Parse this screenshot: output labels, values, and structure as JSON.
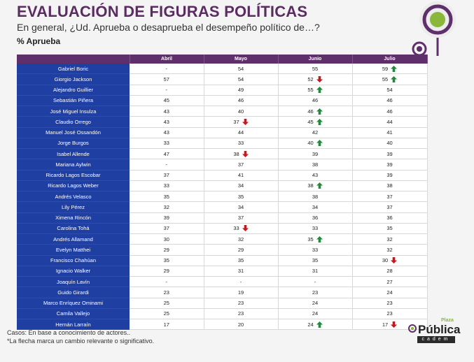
{
  "header": {
    "title": "EVALUACIÓN DE FIGURAS POLÍTICAS",
    "subtitle": "En general, ¿Ud. Aprueba o desaprueba el desempeño político de…?",
    "unit": "% Aprueba"
  },
  "colors": {
    "title": "#5b2c62",
    "header_bg": "#5e2f6a",
    "name_bg": "#1f3fa3",
    "arrow_up": "#1e8a3a",
    "arrow_down": "#c8161d",
    "accent_green": "#8ab73a"
  },
  "footer": {
    "note1": "Casos: En base a conocimiento de actores..",
    "note2": "*La flecha marca un cambio relevante o significativo.",
    "brand_top": "Plaza",
    "brand_main": "Pública",
    "brand_sub": "cadem"
  },
  "chart_data": {
    "type": "table",
    "columns": [
      "Abril",
      "Mayo",
      "Junio",
      "Julio"
    ],
    "rows": [
      {
        "name": "Gabriel Boric",
        "values": [
          "-",
          "54",
          "55",
          "59"
        ],
        "arrows": [
          "",
          "",
          "",
          "up"
        ]
      },
      {
        "name": "Giorgio Jackson",
        "values": [
          "57",
          "54",
          "52",
          "55"
        ],
        "arrows": [
          "",
          "",
          "down",
          "up"
        ]
      },
      {
        "name": "Alejandro Guillier",
        "values": [
          "-",
          "49",
          "55",
          "54"
        ],
        "arrows": [
          "",
          "",
          "up",
          ""
        ]
      },
      {
        "name": "Sebastián Piñera",
        "values": [
          "45",
          "46",
          "46",
          "46"
        ],
        "arrows": [
          "",
          "",
          "",
          ""
        ]
      },
      {
        "name": "José Miguel Insulza",
        "values": [
          "43",
          "40",
          "46",
          "46"
        ],
        "arrows": [
          "",
          "",
          "up",
          ""
        ]
      },
      {
        "name": "Claudio Orrego",
        "values": [
          "43",
          "37",
          "45",
          "44"
        ],
        "arrows": [
          "",
          "down",
          "up",
          ""
        ]
      },
      {
        "name": "Manuel José Ossandón",
        "values": [
          "43",
          "44",
          "42",
          "41"
        ],
        "arrows": [
          "",
          "",
          "",
          ""
        ]
      },
      {
        "name": "Jorge Burgos",
        "values": [
          "33",
          "33",
          "40",
          "40"
        ],
        "arrows": [
          "",
          "",
          "up",
          ""
        ]
      },
      {
        "name": "Isabel Allende",
        "values": [
          "47",
          "38",
          "39",
          "39"
        ],
        "arrows": [
          "",
          "down",
          "",
          ""
        ]
      },
      {
        "name": "Mariana Aylwin",
        "values": [
          "-",
          "37",
          "38",
          "39"
        ],
        "arrows": [
          "",
          "",
          "",
          ""
        ]
      },
      {
        "name": "Ricardo Lagos Escobar",
        "values": [
          "37",
          "41",
          "43",
          "39"
        ],
        "arrows": [
          "",
          "",
          "",
          ""
        ]
      },
      {
        "name": "Ricardo Lagos Weber",
        "values": [
          "33",
          "34",
          "38",
          "38"
        ],
        "arrows": [
          "",
          "",
          "up",
          ""
        ]
      },
      {
        "name": "Andrés Velasco",
        "values": [
          "35",
          "35",
          "38",
          "37"
        ],
        "arrows": [
          "",
          "",
          "",
          ""
        ]
      },
      {
        "name": "Lily Pérez",
        "values": [
          "32",
          "34",
          "34",
          "37"
        ],
        "arrows": [
          "",
          "",
          "",
          ""
        ]
      },
      {
        "name": "Ximena Rincón",
        "values": [
          "39",
          "37",
          "36",
          "36"
        ],
        "arrows": [
          "",
          "",
          "",
          ""
        ]
      },
      {
        "name": "Carolina Tohá",
        "values": [
          "37",
          "33",
          "33",
          "35"
        ],
        "arrows": [
          "",
          "down",
          "",
          ""
        ]
      },
      {
        "name": "Andrés Allamand",
        "values": [
          "30",
          "32",
          "35",
          "32"
        ],
        "arrows": [
          "",
          "",
          "up",
          ""
        ]
      },
      {
        "name": "Evelyn Matthei",
        "values": [
          "29",
          "29",
          "33",
          "32"
        ],
        "arrows": [
          "",
          "",
          "",
          ""
        ]
      },
      {
        "name": "Francisco Chahúan",
        "values": [
          "35",
          "35",
          "35",
          "30"
        ],
        "arrows": [
          "",
          "",
          "",
          "down"
        ]
      },
      {
        "name": "Ignacio Walker",
        "values": [
          "29",
          "31",
          "31",
          "28"
        ],
        "arrows": [
          "",
          "",
          "",
          ""
        ]
      },
      {
        "name": "Joaquín Lavín",
        "values": [
          "-",
          "-",
          "-",
          "27"
        ],
        "arrows": [
          "",
          "",
          "",
          ""
        ]
      },
      {
        "name": "Guido Girardi",
        "values": [
          "23",
          "19",
          "23",
          "24"
        ],
        "arrows": [
          "",
          "",
          "",
          ""
        ]
      },
      {
        "name": "Marco Enríquez Ominami",
        "values": [
          "25",
          "23",
          "24",
          "23"
        ],
        "arrows": [
          "",
          "",
          "",
          ""
        ]
      },
      {
        "name": "Camila Vallejo",
        "values": [
          "25",
          "23",
          "24",
          "23"
        ],
        "arrows": [
          "",
          "",
          "",
          ""
        ]
      },
      {
        "name": "Hernán Larraín",
        "values": [
          "17",
          "20",
          "24",
          "17"
        ],
        "arrows": [
          "",
          "",
          "up",
          "down"
        ]
      }
    ]
  }
}
